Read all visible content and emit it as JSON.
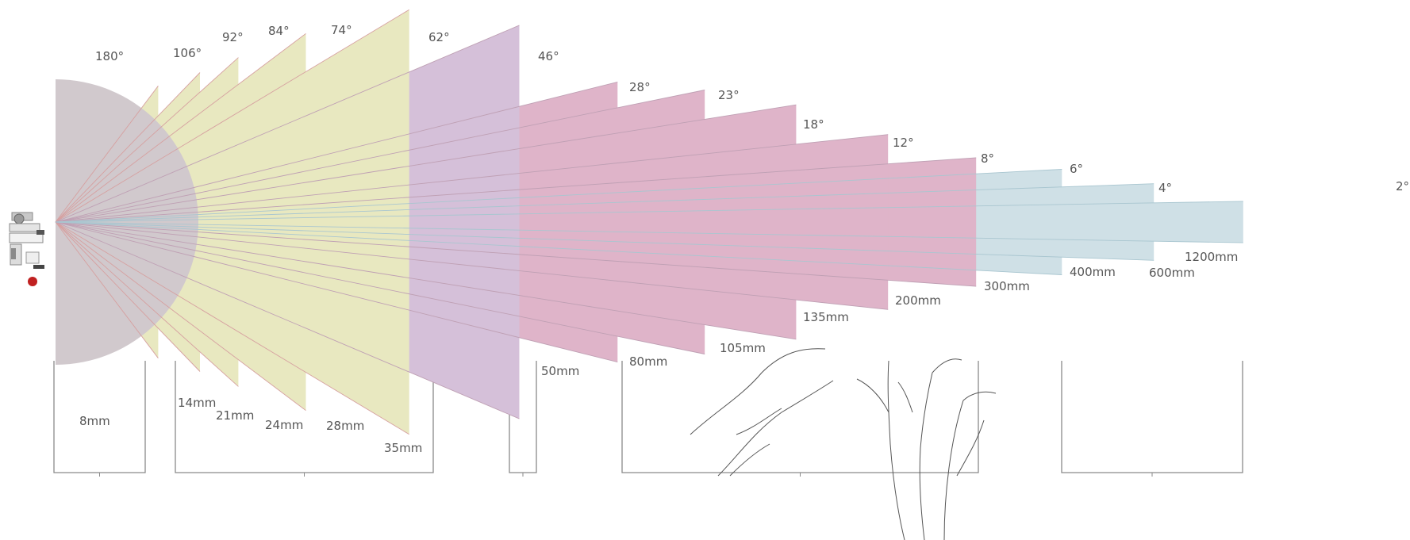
{
  "colors": {
    "fisheye": "#d1c9cd",
    "wide": "#e8e8c0",
    "standard": "#d5c0d9",
    "tele": "#dfb4c9",
    "super_tele": "#cfe0e6",
    "wide_line": "#d6a0a0",
    "tele_line": "#bfa0b4",
    "super_line": "#a9c6d0",
    "box_stroke": "#8a8a8a",
    "text": "#555555"
  },
  "lenses": [
    {
      "angle_label": "180°",
      "focal_label": "8mm",
      "angle_deg": 180,
      "group": "fisheye"
    },
    {
      "angle_label": "106°",
      "focal_label": "14mm",
      "angle_deg": 106,
      "group": "wide"
    },
    {
      "angle_label": "92°",
      "focal_label": "21mm",
      "angle_deg": 92,
      "group": "wide"
    },
    {
      "angle_label": "84°",
      "focal_label": "24mm",
      "angle_deg": 84,
      "group": "wide"
    },
    {
      "angle_label": "74°",
      "focal_label": "28mm",
      "angle_deg": 74,
      "group": "wide"
    },
    {
      "angle_label": "62°",
      "focal_label": "35mm",
      "angle_deg": 62,
      "group": "wide"
    },
    {
      "angle_label": "46°",
      "focal_label": "50mm",
      "angle_deg": 46,
      "group": "standard"
    },
    {
      "angle_label": "28°",
      "focal_label": "80mm",
      "angle_deg": 28,
      "group": "tele"
    },
    {
      "angle_label": "23°",
      "focal_label": "105mm",
      "angle_deg": 23,
      "group": "tele"
    },
    {
      "angle_label": "18°",
      "focal_label": "135mm",
      "angle_deg": 18,
      "group": "tele"
    },
    {
      "angle_label": "12°",
      "focal_label": "200mm",
      "angle_deg": 12,
      "group": "tele"
    },
    {
      "angle_label": "8°",
      "focal_label": "300mm",
      "angle_deg": 8,
      "group": "tele"
    },
    {
      "angle_label": "6°",
      "focal_label": "400mm",
      "angle_deg": 6,
      "group": "super_tele"
    },
    {
      "angle_label": "4°",
      "focal_label": "600mm",
      "angle_deg": 4,
      "group": "super_tele"
    },
    {
      "angle_label": "2°",
      "focal_label": "1200mm",
      "angle_deg": 2,
      "group": "super_tele"
    }
  ]
}
